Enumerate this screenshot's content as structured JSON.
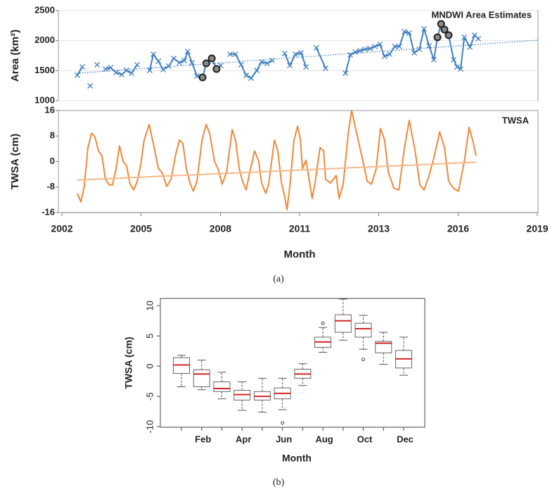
{
  "chart_data": [
    {
      "type": "line",
      "annotation": "MNDWI Area Estimates",
      "ylabel": "Area (km²)",
      "xlim": [
        2002,
        2019
      ],
      "ylim": [
        1000,
        2500
      ],
      "yticks": [
        1000,
        1500,
        2000,
        2500
      ],
      "grid": true,
      "series": [
        {
          "color": "#3f7fbf",
          "style": "solid",
          "marker": "x",
          "x": [
            2002.55,
            2002.73,
            null,
            2003.01,
            null,
            2003.26,
            null,
            2003.56,
            2003.74,
            2003.94,
            2004.14,
            2004.31,
            2004.49,
            2004.69,
            null,
            2005.14,
            2005.27,
            2005.45,
            2005.62,
            2005.82,
            2006.0,
            2006.2,
            2006.38,
            2006.5,
            2006.65,
            2006.83,
            2007.03,
            2007.16,
            2007.36,
            2007.53,
            2007.68,
            null,
            2008.01,
            2008.21,
            2008.41,
            2008.59,
            2008.77,
            2008.97,
            2009.14,
            2009.34,
            2009.52,
            null,
            2009.97,
            2010.15,
            2010.35,
            2010.55,
            2010.73,
            null,
            2011.1,
            2011.43,
            null,
            2012.14,
            2012.31,
            2012.49,
            2012.66,
            2012.84,
            2013.02,
            2013.19,
            2013.37,
            2013.54,
            2013.72,
            2013.9,
            2014.07,
            2014.25,
            2014.42,
            2014.6,
            2014.78,
            2014.95,
            2015.13,
            2015.3,
            2015.43,
            2015.56,
            2015.68,
            2015.83,
            2016.01,
            2016.13,
            2016.26,
            2016.39,
            2016.59,
            2016.76,
            2016.89
          ],
          "values": [
            1422,
            1562,
            null,
            1246,
            null,
            1598,
            null,
            1527,
            1550,
            1469,
            1434,
            1504,
            1457,
            1598,
            null,
            1504,
            1773,
            1656,
            1516,
            1574,
            1703,
            1633,
            1668,
            1820,
            1633,
            1410,
            1387,
            1621,
            1703,
            1527,
            1586,
            null,
            1773,
            1773,
            1598,
            1422,
            1375,
            1504,
            1645,
            1621,
            1668,
            null,
            1785,
            1586,
            1773,
            1797,
            1562,
            null,
            1879,
            1539,
            null,
            1457,
            1762,
            1809,
            1832,
            1856,
            1867,
            1902,
            1938,
            1738,
            1773,
            1902,
            1902,
            2149,
            2125,
            1797,
            1856,
            2196,
            1914,
            1680,
            2055,
            2278,
            2184,
            2090,
            1680,
            1562,
            1527,
            2055,
            1891,
            2090,
            2032
          ]
        },
        {
          "color": "#222222",
          "style": "markers",
          "marker": "circle",
          "x": [
            2007.03,
            2007.16,
            2007.36,
            2007.53,
            2015.43,
            2015.56,
            2015.68,
            2015.83
          ],
          "values": [
            1387,
            1621,
            1703,
            1527,
            2055,
            2278,
            2184,
            2090
          ]
        },
        {
          "color": "#3f7fbf",
          "style": "dotted",
          "x": [
            2002.55,
            2019
          ],
          "values": [
            1457,
            2008
          ]
        }
      ]
    },
    {
      "type": "line",
      "annotation": "TWSA",
      "ylabel": "TWSA (cm)",
      "xlabel": "Month",
      "xlim": [
        2002,
        2019
      ],
      "ylim": [
        -16,
        16
      ],
      "yticks": [
        -16,
        -8,
        0,
        8,
        16
      ],
      "grid": false,
      "xticks": [
        {
          "value": 2002,
          "label": "2002"
        },
        {
          "value": 2004.83,
          "label": "2005"
        },
        {
          "value": 2007.67,
          "label": "2008"
        },
        {
          "value": 2010.5,
          "label": "2011"
        },
        {
          "value": 2013.33,
          "label": "2013"
        },
        {
          "value": 2016.17,
          "label": "2016"
        },
        {
          "value": 2019,
          "label": "2019"
        }
      ],
      "series": [
        {
          "color": "#ed8a3c",
          "style": "solid",
          "x": [
            2002.55,
            2002.68,
            2002.8,
            2002.93,
            2003.06,
            2003.18,
            2003.31,
            2003.43,
            2003.56,
            2003.69,
            2003.81,
            2003.94,
            2004.06,
            2004.19,
            2004.31,
            2004.44,
            2004.57,
            2004.69,
            2004.82,
            2004.94,
            2005.12,
            2005.27,
            2005.45,
            2005.57,
            2005.75,
            2005.9,
            2006.07,
            2006.2,
            2006.33,
            2006.45,
            2006.58,
            2006.7,
            2006.83,
            2007.01,
            2007.16,
            2007.28,
            2007.46,
            2007.58,
            2007.73,
            2007.89,
            2008.09,
            2008.21,
            2008.34,
            2008.46,
            2008.59,
            2008.72,
            2008.89,
            2009.04,
            2009.14,
            2009.29,
            2009.39,
            2009.6,
            2009.72,
            2009.85,
            2009.97,
            2010.05,
            2010.15,
            2010.3,
            2010.43,
            2010.53,
            2010.6,
            2010.73,
            2010.85,
            2010.95,
            2011.05,
            2011.23,
            2011.36,
            2011.43,
            2011.61,
            2011.81,
            2011.91,
            2012.06,
            2012.24,
            2012.36,
            2012.54,
            2012.74,
            2012.92,
            2013.07,
            2013.24,
            2013.39,
            2013.54,
            2013.67,
            2013.87,
            2014.05,
            2014.25,
            2014.42,
            2014.63,
            2014.8,
            2014.95,
            2015.13,
            2015.3,
            2015.51,
            2015.68,
            2015.83,
            2016.01,
            2016.18,
            2016.39,
            2016.56,
            2016.69,
            2016.81
          ],
          "values": [
            -10.0,
            -12.7,
            -7.8,
            4.4,
            8.9,
            7.8,
            3.3,
            1.8,
            -5.6,
            -7.3,
            -7.3,
            -2.2,
            4.9,
            0.0,
            -1.3,
            -7.1,
            -8.9,
            -6.2,
            -1.1,
            6.7,
            11.6,
            5.6,
            -2.2,
            -3.3,
            -7.8,
            -5.6,
            2.2,
            6.7,
            5.6,
            -2.2,
            -6.7,
            -9.3,
            -6.2,
            6.7,
            11.6,
            8.9,
            0.0,
            -2.2,
            -7.1,
            -3.3,
            10.0,
            6.7,
            -2.2,
            -6.2,
            -8.9,
            -3.3,
            3.3,
            0.0,
            -6.7,
            -10.0,
            -7.1,
            6.7,
            3.3,
            -6.7,
            -11.1,
            -15.1,
            -7.8,
            6.7,
            11.1,
            6.7,
            -2.2,
            0.4,
            -6.2,
            -11.6,
            -6.7,
            4.4,
            3.3,
            -5.6,
            -6.7,
            -4.4,
            -11.6,
            -7.1,
            8.9,
            16.0,
            8.9,
            1.1,
            -6.2,
            -7.1,
            -2.2,
            10.4,
            6.7,
            -3.3,
            -8.4,
            -8.9,
            4.4,
            12.9,
            3.3,
            -7.3,
            -8.9,
            -4.4,
            1.1,
            9.3,
            4.4,
            -6.2,
            -8.4,
            -9.3,
            0.0,
            10.7,
            6.7,
            1.8
          ]
        },
        {
          "color": "#f4b98c",
          "style": "solid",
          "x": [
            2002.55,
            2016.81
          ],
          "values": [
            -5.8,
            -0.2
          ]
        }
      ]
    },
    {
      "type": "box",
      "xlabel": "Month",
      "ylabel": "TWSA (cm)",
      "categories": [
        null,
        "Feb",
        null,
        "Apr",
        null,
        "Jun",
        null,
        "Aug",
        null,
        "Oct",
        null,
        "Dec"
      ],
      "ylim": [
        -10.1,
        11.2
      ],
      "yticks": [
        -10,
        -5,
        0,
        5,
        10
      ],
      "min": [
        -3.4,
        -3.9,
        -5.4,
        -7.3,
        -7.6,
        -7.2,
        -3.2,
        2.3,
        4.3,
        2.8,
        0.3,
        -1.5
      ],
      "q1": [
        -1.2,
        -3.4,
        -4.2,
        -5.6,
        -5.6,
        -5.4,
        -2.0,
        3.1,
        5.6,
        4.8,
        2.2,
        -0.3
      ],
      "median": [
        0.2,
        -1.3,
        -3.7,
        -4.7,
        -5.0,
        -4.5,
        -1.3,
        4.0,
        7.5,
        6.2,
        3.8,
        1.2
      ],
      "q3": [
        1.4,
        -0.6,
        -2.6,
        -4.0,
        -4.2,
        -3.6,
        -0.5,
        4.8,
        8.5,
        7.1,
        4.1,
        2.6
      ],
      "max": [
        1.8,
        1.0,
        -1.0,
        -2.6,
        -2.0,
        -2.0,
        0.4,
        6.4,
        11.1,
        8.4,
        5.6,
        4.8
      ],
      "outliers": [
        [],
        [],
        [],
        [],
        [],
        [
          -9.4
        ],
        [],
        [
          7.1
        ],
        [],
        [
          1.1
        ],
        [],
        []
      ],
      "median_color": "#d62728",
      "box_color": "#666666"
    }
  ],
  "captions": [
    "(a)",
    "(b)"
  ]
}
